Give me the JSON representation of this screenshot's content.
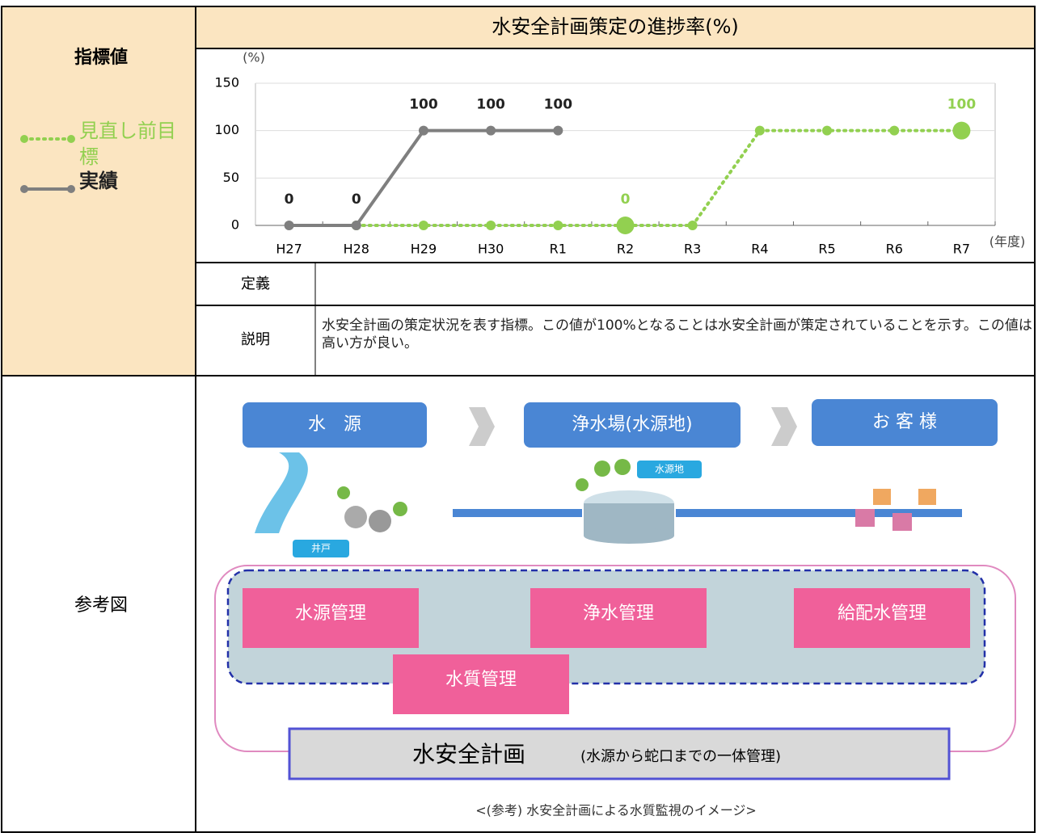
{
  "indicator_label": "指標値",
  "chart_data": {
    "type": "line",
    "title": "水安全計画策定の進捗率(%)",
    "y_unit": "(%)",
    "x_unit": "(年度)",
    "categories": [
      "H27",
      "H28",
      "H29",
      "H30",
      "R1",
      "R2",
      "R3",
      "R4",
      "R5",
      "R6",
      "R7"
    ],
    "ylim": [
      0,
      150
    ],
    "yticks": [
      0,
      50,
      100,
      150
    ],
    "grid": true,
    "series": [
      {
        "name": "見直し前目標",
        "color": "#92d050",
        "line_style": "dotted",
        "values": [
          null,
          0,
          0,
          0,
          0,
          0,
          0,
          100,
          100,
          100,
          100
        ],
        "value_labels": [
          null,
          null,
          null,
          null,
          null,
          "0",
          null,
          null,
          null,
          null,
          "100"
        ]
      },
      {
        "name": "実績",
        "color": "#7f7f7f",
        "line_style": "solid",
        "values": [
          0,
          0,
          100,
          100,
          100,
          null,
          null,
          null,
          null,
          null,
          null
        ]
      }
    ]
  },
  "definition_label": "定義",
  "explanation_label": "説明",
  "explanation": "水安全計画の策定状況を表す指標。この値が100%となることは水安全計画が策定されていることを示す。この値は高い方が良い。",
  "reference_label": "参考図",
  "diagram": {
    "stages": [
      "水　源",
      "浄水場(水源地)",
      "お 客 様"
    ],
    "tags": [
      "水源地",
      "井戸"
    ],
    "management": [
      "水源管理",
      "浄水管理",
      "給配水管理",
      "水質管理"
    ],
    "plan_title": "水安全計画",
    "plan_note": "(水源から蛇口までの一体管理)",
    "caption": "<(参考) 水安全計画による水質監視のイメージ>"
  }
}
